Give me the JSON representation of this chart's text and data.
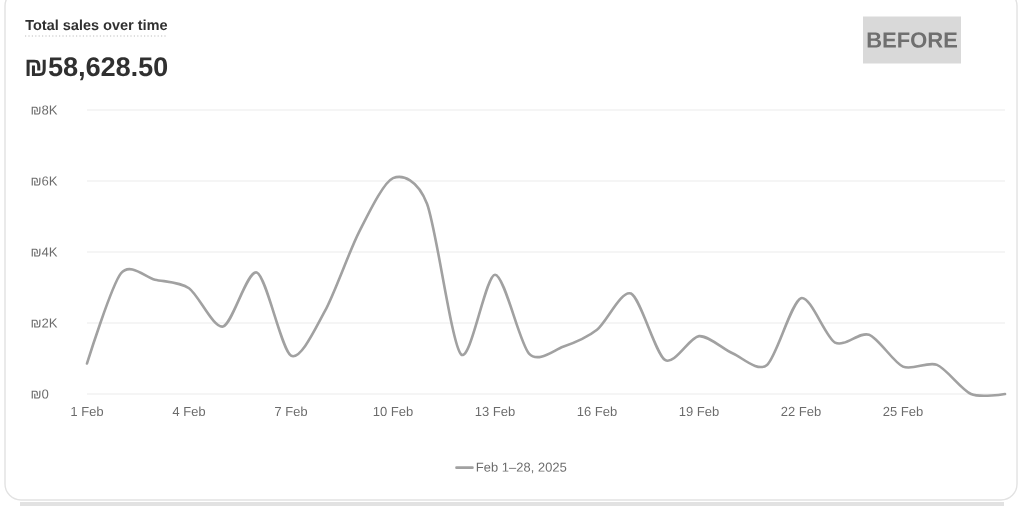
{
  "chart_data": {
    "type": "line",
    "title": "Total sales over time",
    "subtitle": "₪58,628.50",
    "annotations": [
      "BEFORE"
    ],
    "x": [
      "2025-02-01",
      "2025-02-02",
      "2025-02-03",
      "2025-02-04",
      "2025-02-05",
      "2025-02-06",
      "2025-02-07",
      "2025-02-08",
      "2025-02-09",
      "2025-02-10",
      "2025-02-11",
      "2025-02-12",
      "2025-02-13",
      "2025-02-14",
      "2025-02-15",
      "2025-02-16",
      "2025-02-17",
      "2025-02-18",
      "2025-02-19",
      "2025-02-20",
      "2025-02-21",
      "2025-02-22",
      "2025-02-23",
      "2025-02-24",
      "2025-02-25",
      "2025-02-26",
      "2025-02-27",
      "2025-02-28"
    ],
    "series": [
      {
        "name": "Feb 1–28, 2025",
        "color": "#a1a1a1",
        "values": [
          860,
          3400,
          3220,
          2980,
          1900,
          3420,
          1080,
          2340,
          4560,
          6080,
          5360,
          1120,
          3360,
          1140,
          1330,
          1810,
          2830,
          960,
          1630,
          1140,
          820,
          2700,
          1450,
          1670,
          770,
          820,
          0,
          0
        ]
      }
    ],
    "xlim": [
      "2025-02-01",
      "2025-02-28"
    ],
    "xticks": [
      {
        "value": "2025-02-01",
        "label": "1 Feb"
      },
      {
        "value": "2025-02-04",
        "label": "4 Feb"
      },
      {
        "value": "2025-02-07",
        "label": "7 Feb"
      },
      {
        "value": "2025-02-10",
        "label": "10 Feb"
      },
      {
        "value": "2025-02-13",
        "label": "13 Feb"
      },
      {
        "value": "2025-02-16",
        "label": "16 Feb"
      },
      {
        "value": "2025-02-19",
        "label": "19 Feb"
      },
      {
        "value": "2025-02-22",
        "label": "22 Feb"
      },
      {
        "value": "2025-02-25",
        "label": "25 Feb"
      }
    ],
    "ylim": [
      0,
      8000
    ],
    "yticks": [
      {
        "value": 0,
        "label": "₪0"
      },
      {
        "value": 2000,
        "label": "₪2K"
      },
      {
        "value": 4000,
        "label": "₪4K"
      },
      {
        "value": 6000,
        "label": "₪6K"
      },
      {
        "value": 8000,
        "label": "₪8K"
      }
    ],
    "grid": "y",
    "legend": "bottom",
    "line_style": "solid"
  }
}
